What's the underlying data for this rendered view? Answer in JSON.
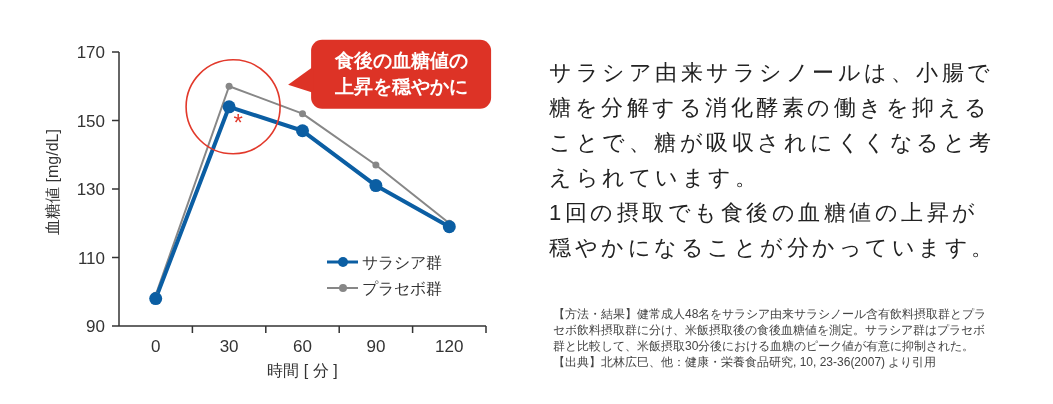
{
  "chart_data": {
    "type": "line",
    "categories": [
      "0",
      "30",
      "60",
      "90",
      "120"
    ],
    "series": [
      {
        "name": "サラシア群",
        "color": "#0b5ea3",
        "values": [
          98,
          154,
          147,
          131,
          119
        ]
      },
      {
        "name": "プラセボ群",
        "color": "#878787",
        "values": [
          99,
          160,
          152,
          137,
          120
        ]
      }
    ],
    "xlabel": "時間 [ 分 ]",
    "ylabel": "血糖値 [mg/dL]",
    "ylim": [
      90,
      170
    ],
    "yticks": [
      90,
      110,
      130,
      150,
      170
    ],
    "legend": "bottom right",
    "marker": "circle",
    "line_style": "solid",
    "annotations": [
      {
        "text": "*",
        "x": "30",
        "y": 154
      },
      "食後の血糖値の上昇を穏やかに",
      "サラシア由来サラシノールは、小腸で糖を分解する消化酵素の働きを抑えることで、糖が吸収されにくくなると考えられています。\n1回の摂取でも食後の血糖値の上昇が穏やかになることが分かっています。",
      "【方法・結果】健常成人48名をサラシア由来サラシノール含有飲料摂取群とプラセボ飲料摂取群に分け、米飯摂取後の食後血糖値を測定。サラシア群はプラセボ群と比較して、米飯摂取30分後における血糖のピーク値が有意に抑制された。",
      "【出典】北林広巳、他：健康・栄養食品研究, 10, 23-36(2007) より引用"
    ]
  }
}
